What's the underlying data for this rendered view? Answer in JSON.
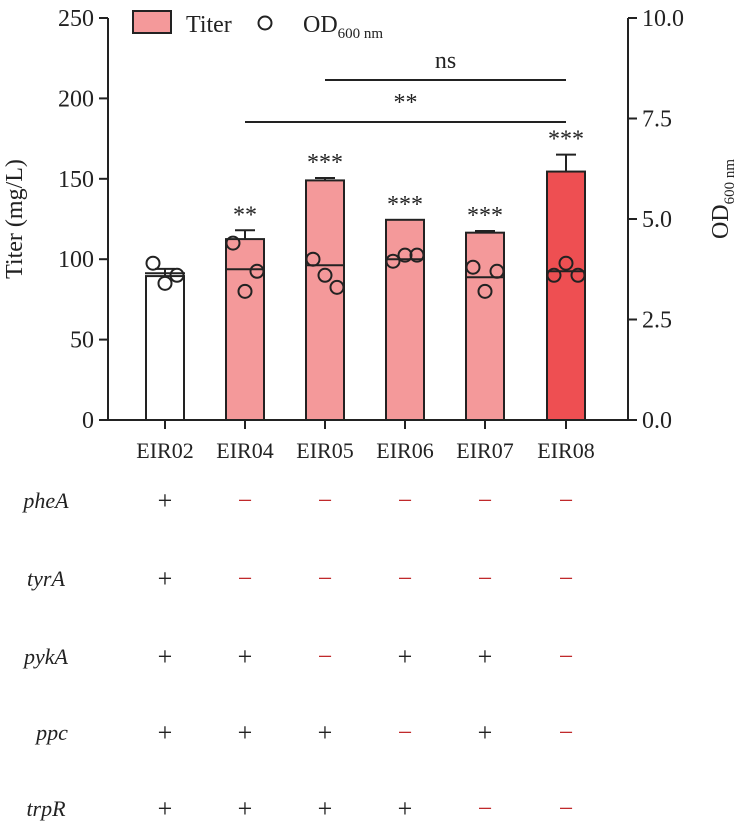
{
  "chart_data": {
    "type": "bar",
    "categories": [
      "EIR02",
      "EIR04",
      "EIR05",
      "EIR06",
      "EIR07",
      "EIR08"
    ],
    "series": [
      {
        "name": "Titer",
        "values": [
          89.5,
          112.5,
          149,
          124.5,
          116.5,
          154.5
        ],
        "errors": [
          4.5,
          5.5,
          1.5,
          0,
          1.0,
          10.5
        ],
        "colors": [
          "#ffffff",
          "#f4999a",
          "#f4999a",
          "#f4999a",
          "#f4999a",
          "#ee4f52"
        ]
      }
    ],
    "od_series": {
      "name": "OD",
      "name_sub": "600 nm",
      "points": [
        [
          3.9,
          3.4,
          3.6
        ],
        [
          4.4,
          3.2,
          3.7
        ],
        [
          4.0,
          3.6,
          3.3
        ],
        [
          3.95,
          4.1,
          4.1
        ],
        [
          3.8,
          3.2,
          3.7
        ],
        [
          3.6,
          3.9,
          3.6
        ]
      ],
      "means": [
        3.65,
        3.75,
        3.85,
        4.0,
        3.55,
        3.7
      ]
    },
    "y_left": {
      "label": "Titer (mg/L)",
      "ylim": [
        0,
        250
      ],
      "ticks": [
        "0",
        "50",
        "100",
        "150",
        "200",
        "250"
      ]
    },
    "y_right": {
      "label": "OD",
      "label_sub": "600 nm",
      "ylim": [
        0,
        10
      ],
      "ticks": [
        "0.0",
        "2.5",
        "5.0",
        "7.5",
        "10.0"
      ]
    },
    "significance": [
      "",
      "**",
      "***",
      "***",
      "***",
      "***"
    ],
    "brackets": [
      {
        "from": "EIR05",
        "to": "EIR08",
        "label": "ns"
      },
      {
        "from": "EIR04",
        "to": "EIR08",
        "label": "**"
      }
    ],
    "legend": {
      "placement": "top-left",
      "titer_label": "Titer",
      "od_label": "OD",
      "od_sub": "600 nm"
    },
    "genotype": {
      "genes": [
        "pheA",
        "tyrA",
        "pykA",
        "ppc",
        "trpR"
      ],
      "rows": [
        [
          "+",
          "−",
          "−",
          "−",
          "−",
          "−"
        ],
        [
          "+",
          "−",
          "−",
          "−",
          "−",
          "−"
        ],
        [
          "+",
          "+",
          "−",
          "+",
          "+",
          "−"
        ],
        [
          "+",
          "+",
          "+",
          "−",
          "+",
          "−"
        ],
        [
          "+",
          "+",
          "+",
          "+",
          "−",
          "−"
        ]
      ],
      "plus_color": "#222222",
      "minus_color": "#c0292b"
    }
  }
}
